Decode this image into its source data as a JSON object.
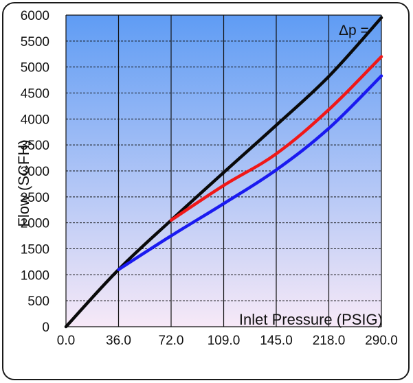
{
  "chart_data": {
    "type": "line",
    "title": "",
    "xlabel": "Inlet Pressure (PSIG)",
    "ylabel": "Flow (SCFH)",
    "annotation": "Δp =",
    "x_categories": [
      "0.0",
      "36.0",
      "72.0",
      "109.0",
      "145.0",
      "218.0",
      "290.0"
    ],
    "y_ticks": [
      0,
      500,
      1000,
      1500,
      2000,
      2500,
      3000,
      3500,
      4000,
      4500,
      5000,
      5500,
      6000
    ],
    "ylim": [
      0,
      6000
    ],
    "grid": true,
    "background_gradient": [
      "#5f9cf4",
      "#f7e9f7"
    ],
    "series": [
      {
        "color": "#0a0a0a",
        "points": [
          [
            0,
            0
          ],
          [
            1,
            1100
          ],
          [
            2,
            2050
          ],
          [
            3,
            2970
          ],
          [
            4,
            3880
          ],
          [
            5,
            4820
          ],
          [
            6,
            5950
          ]
        ]
      },
      {
        "color": "#f01818",
        "points": [
          [
            2,
            2050
          ],
          [
            3,
            2720
          ],
          [
            4,
            3330
          ],
          [
            5,
            4180
          ],
          [
            6,
            5200
          ]
        ]
      },
      {
        "color": "#1a1af0",
        "points": [
          [
            1,
            1100
          ],
          [
            2,
            1750
          ],
          [
            3,
            2370
          ],
          [
            4,
            3020
          ],
          [
            5,
            3820
          ],
          [
            6,
            4830
          ]
        ]
      }
    ]
  }
}
